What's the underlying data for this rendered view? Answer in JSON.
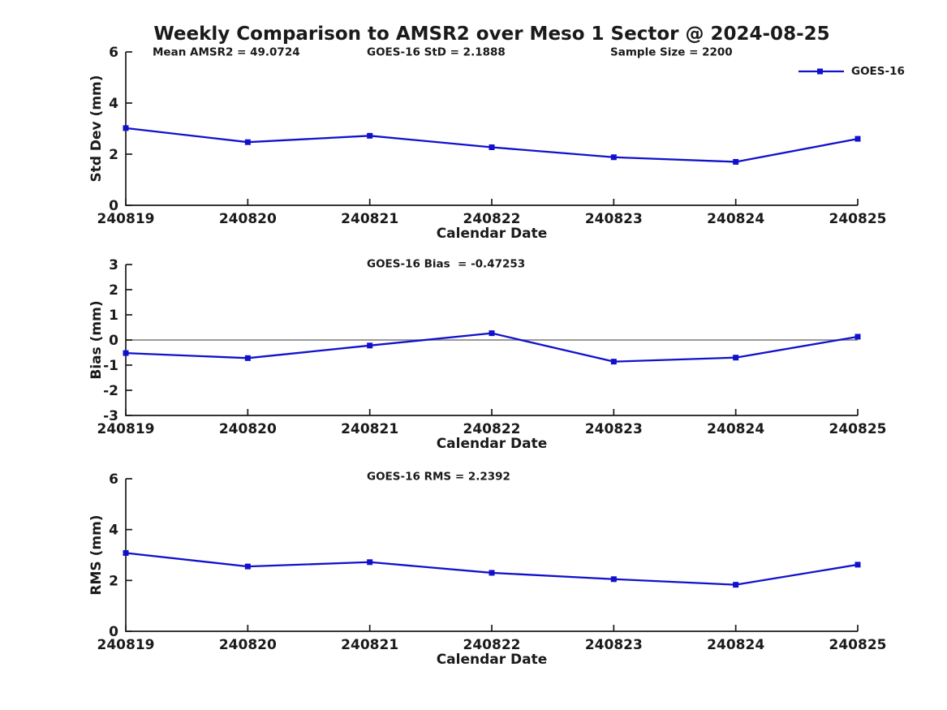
{
  "title": "Weekly Comparison to AMSR2 over Meso 1 Sector @ 2024-08-25",
  "legend": {
    "label": "GOES-16"
  },
  "colors": {
    "series_line": "#1111cc",
    "zero_line": "#787878",
    "axis_text": "#1a1a1a"
  },
  "chart_data": [
    {
      "type": "line",
      "name": "std-dev",
      "ylabel": "Std Dev (mm)",
      "xlabel": "Calendar Date",
      "categories": [
        "240819",
        "240820",
        "240821",
        "240822",
        "240823",
        "240824",
        "240825"
      ],
      "series": [
        {
          "name": "GOES-16",
          "values": [
            3.02,
            2.47,
            2.72,
            2.27,
            1.88,
            1.7,
            2.6
          ]
        }
      ],
      "ylim": [
        0,
        6
      ],
      "yticks": [
        0,
        2,
        4,
        6
      ],
      "zero_line": false,
      "grid": false,
      "legend_position": "top-right",
      "annotations": [
        "Mean AMSR2 = 49.0724",
        "GOES-16 StD = 2.1888",
        "Sample Size = 2200"
      ]
    },
    {
      "type": "line",
      "name": "bias",
      "ylabel": "Bias (mm)",
      "xlabel": "Calendar Date",
      "categories": [
        "240819",
        "240820",
        "240821",
        "240822",
        "240823",
        "240824",
        "240825"
      ],
      "series": [
        {
          "name": "GOES-16",
          "values": [
            -0.52,
            -0.72,
            -0.22,
            0.27,
            -0.86,
            -0.7,
            0.13
          ]
        }
      ],
      "ylim": [
        -3,
        3
      ],
      "yticks": [
        -3,
        -2,
        -1,
        0,
        1,
        2,
        3
      ],
      "zero_line": true,
      "grid": false,
      "annotations": [
        "GOES-16 Bias  = -0.47253"
      ]
    },
    {
      "type": "line",
      "name": "rms",
      "ylabel": "RMS (mm)",
      "xlabel": "Calendar Date",
      "categories": [
        "240819",
        "240820",
        "240821",
        "240822",
        "240823",
        "240824",
        "240825"
      ],
      "series": [
        {
          "name": "GOES-16",
          "values": [
            3.08,
            2.55,
            2.72,
            2.3,
            2.05,
            1.83,
            2.62
          ]
        }
      ],
      "ylim": [
        0,
        6
      ],
      "yticks": [
        0,
        2,
        4,
        6
      ],
      "zero_line": false,
      "grid": false,
      "annotations": [
        "GOES-16 RMS = 2.2392"
      ]
    }
  ]
}
